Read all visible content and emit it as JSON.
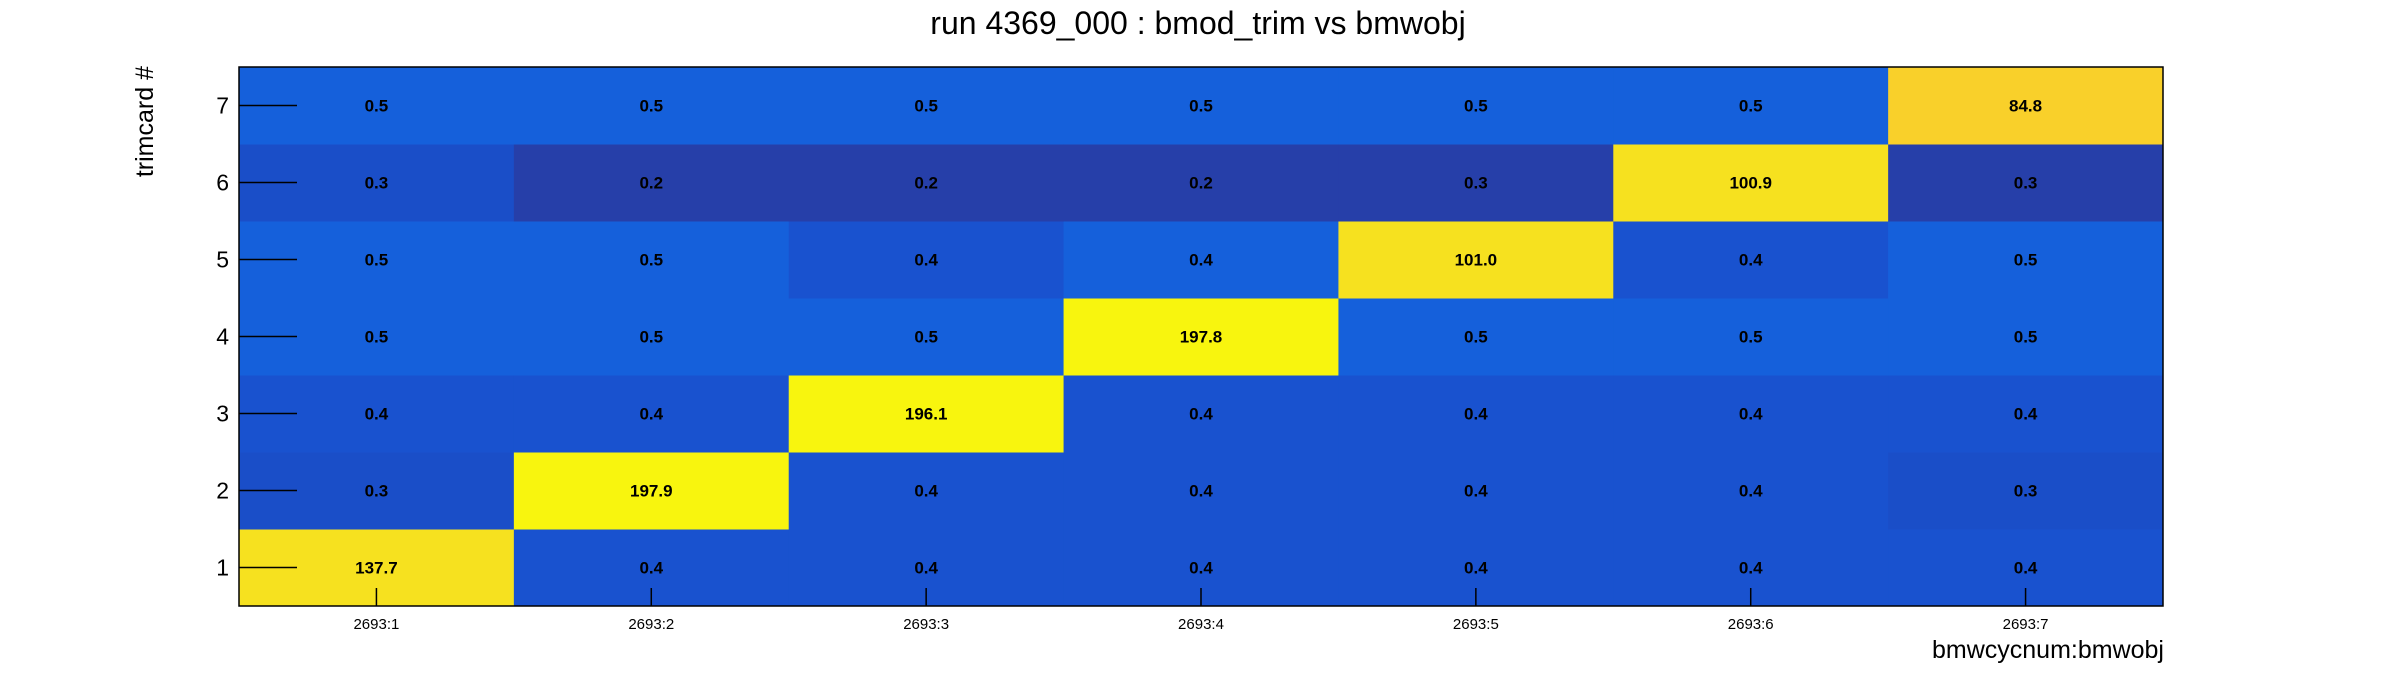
{
  "chart_data": {
    "type": "heatmap",
    "title": "run 4369_000 : bmod_trim vs bmwobj",
    "xlabel": "bmwcycnum:bmwobj",
    "ylabel": "trimcard #",
    "x_categories": [
      "2693:1",
      "2693:2",
      "2693:3",
      "2693:4",
      "2693:5",
      "2693:6",
      "2693:7"
    ],
    "y_categories": [
      "1",
      "2",
      "3",
      "4",
      "5",
      "6",
      "7"
    ],
    "values": [
      [
        137.7,
        0.4,
        0.4,
        0.4,
        0.4,
        0.4,
        0.4
      ],
      [
        0.3,
        197.9,
        0.4,
        0.4,
        0.4,
        0.4,
        0.3
      ],
      [
        0.4,
        0.4,
        196.1,
        0.4,
        0.4,
        0.4,
        0.4
      ],
      [
        0.5,
        0.5,
        0.5,
        197.8,
        0.5,
        0.5,
        0.5
      ],
      [
        0.5,
        0.5,
        0.4,
        0.4,
        101.0,
        0.4,
        0.5
      ],
      [
        0.3,
        0.2,
        0.2,
        0.2,
        0.3,
        100.9,
        0.3
      ],
      [
        0.5,
        0.5,
        0.5,
        0.5,
        0.5,
        0.5,
        84.8
      ]
    ],
    "cell_colors": [
      [
        "#f6e11f",
        "#1952cf",
        "#1952cf",
        "#1952cf",
        "#1952cf",
        "#1952cf",
        "#1952cf"
      ],
      [
        "#1a4ec8",
        "#f8f50e",
        "#1952cf",
        "#1952cf",
        "#1952cf",
        "#1952cf",
        "#1a4ec8"
      ],
      [
        "#1952cf",
        "#1952cf",
        "#f8f50e",
        "#1952cf",
        "#1952cf",
        "#1952cf",
        "#1952cf"
      ],
      [
        "#1560db",
        "#1560db",
        "#1560db",
        "#f8f50e",
        "#1560db",
        "#1560db",
        "#1560db"
      ],
      [
        "#1560db",
        "#1560db",
        "#1952cf",
        "#1560db",
        "#f6e11f",
        "#1952cf",
        "#1560db"
      ],
      [
        "#1a4ec8",
        "#263fa9",
        "#263fa9",
        "#263fa9",
        "#263fa9",
        "#f6e11f",
        "#263fa9"
      ],
      [
        "#1560db",
        "#1560db",
        "#1560db",
        "#1560db",
        "#1560db",
        "#1560db",
        "#f9d02a"
      ]
    ],
    "grid": false,
    "legend": "none"
  }
}
